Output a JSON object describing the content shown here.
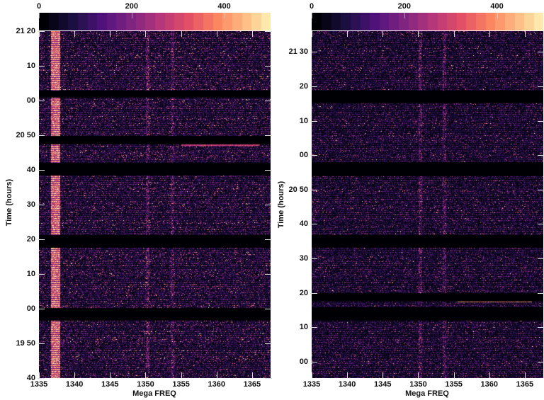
{
  "colormap": "magma",
  "colors": {
    "background": "#000000",
    "tick": "#dddddd"
  },
  "chart_data": [
    {
      "type": "heatmap",
      "xlabel": "Mega FREQ",
      "ylabel": "Time (hours)",
      "xlim": [
        1335,
        1367.6
      ],
      "ylim": [
        "19:40",
        "21:20"
      ],
      "x_ticks": [
        1335,
        1340,
        1345,
        1350,
        1355,
        1360,
        1365
      ],
      "x_tick_labels": [
        "1335",
        "1340",
        "1345",
        "1350",
        "1355",
        "1360",
        "1365"
      ],
      "y_ticks": [
        {
          "time": "21:20",
          "label": "21 20"
        },
        {
          "time": "21:10",
          "label": "10"
        },
        {
          "time": "21:00",
          "label": "00"
        },
        {
          "time": "20:50",
          "label": "20 50"
        },
        {
          "time": "20:40",
          "label": "40"
        },
        {
          "time": "20:30",
          "label": "30"
        },
        {
          "time": "20:20",
          "label": "20"
        },
        {
          "time": "20:10",
          "label": "10"
        },
        {
          "time": "20:00",
          "label": "00"
        },
        {
          "time": "19:50",
          "label": "19 50"
        },
        {
          "time": "19:40",
          "label": "40"
        }
      ],
      "colorbar": {
        "range": [
          0,
          500
        ],
        "ticks": [
          0,
          200,
          400
        ],
        "tick_labels": [
          "0",
          "200",
          "400"
        ]
      },
      "data_gaps": [
        [
          "21:00.9",
          "21:03.0"
        ],
        [
          "20:47.4",
          "20:49.8"
        ],
        [
          "20:38.5",
          "20:42.2"
        ],
        [
          "20:17.6",
          "20:21.3"
        ],
        [
          "19:56.6",
          "20:00.3"
        ]
      ],
      "features": [
        {
          "kind": "vertical-band",
          "freq": [
            1336.6,
            1337.9
          ],
          "level": 420
        },
        {
          "kind": "vertical-line",
          "freq": 1350.3,
          "level": 230
        },
        {
          "kind": "vertical-line",
          "freq": 1353.7,
          "level": 170
        },
        {
          "kind": "horizontal-line",
          "time": "20:47.2",
          "freq": [
            1355,
            1366
          ],
          "level": 300
        }
      ],
      "noise_level": 90
    },
    {
      "type": "heatmap",
      "xlabel": "Mega FREQ",
      "ylabel": "Time (hours)",
      "xlim": [
        1335,
        1367.6
      ],
      "ylim": [
        "19:55.3",
        "21:36"
      ],
      "x_ticks": [
        1335,
        1340,
        1345,
        1350,
        1355,
        1360,
        1365
      ],
      "x_tick_labels": [
        "1335",
        "1340",
        "1345",
        "1350",
        "1355",
        "1360",
        "1365"
      ],
      "y_ticks": [
        {
          "time": "21:30",
          "label": "21 30"
        },
        {
          "time": "21:20",
          "label": "20"
        },
        {
          "time": "21:10",
          "label": "10"
        },
        {
          "time": "21:00",
          "label": "00"
        },
        {
          "time": "20:50",
          "label": "20 50"
        },
        {
          "time": "20:40",
          "label": "40"
        },
        {
          "time": "20:30",
          "label": "30"
        },
        {
          "time": "20:20",
          "label": "20"
        },
        {
          "time": "20:10",
          "label": "10"
        },
        {
          "time": "20:00",
          "label": "00"
        }
      ],
      "colorbar": {
        "range": [
          0,
          500
        ],
        "ticks": [
          0,
          200,
          400
        ],
        "tick_labels": [
          "0",
          "200",
          "400"
        ]
      },
      "data_gaps": [
        [
          "21:15.2",
          "21:18.9"
        ],
        [
          "20:54.0",
          "20:58.1"
        ],
        [
          "20:33.3",
          "20:37.0"
        ],
        [
          "20:17.7",
          "20:20.1"
        ],
        [
          "20:12.1",
          "20:16.0"
        ]
      ],
      "features": [
        {
          "kind": "vertical-line",
          "freq": 1350.3,
          "level": 220
        },
        {
          "kind": "vertical-line",
          "freq": 1353.6,
          "level": 200
        },
        {
          "kind": "horizontal-line",
          "time": "20:17.5",
          "freq": [
            1355.5,
            1366
          ],
          "level": 420
        }
      ],
      "noise_level": 75
    }
  ]
}
